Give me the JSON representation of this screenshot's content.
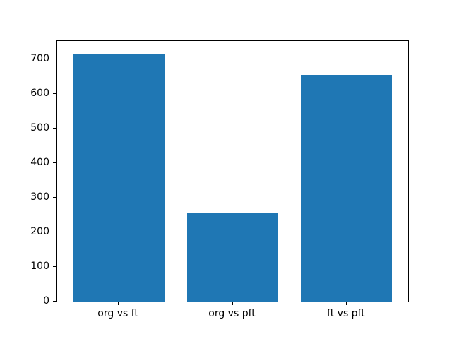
{
  "chart_data": {
    "type": "bar",
    "categories": [
      "org vs ft",
      "org vs pft",
      "ft vs pft"
    ],
    "values": [
      717,
      256,
      656
    ],
    "title": "",
    "xlabel": "",
    "ylabel": "",
    "ylim": [
      0,
      753
    ],
    "xlim": [
      -0.54,
      2.54
    ],
    "yticks": [
      0,
      100,
      200,
      300,
      400,
      500,
      600,
      700
    ],
    "ytick_labels": [
      "0",
      "100",
      "200",
      "300",
      "400",
      "500",
      "600",
      "700"
    ],
    "bar_width": 0.8,
    "bar_color": "#1f77b4",
    "spine_color": "#000000",
    "background_color": "#ffffff",
    "grid": false,
    "legend": null
  }
}
